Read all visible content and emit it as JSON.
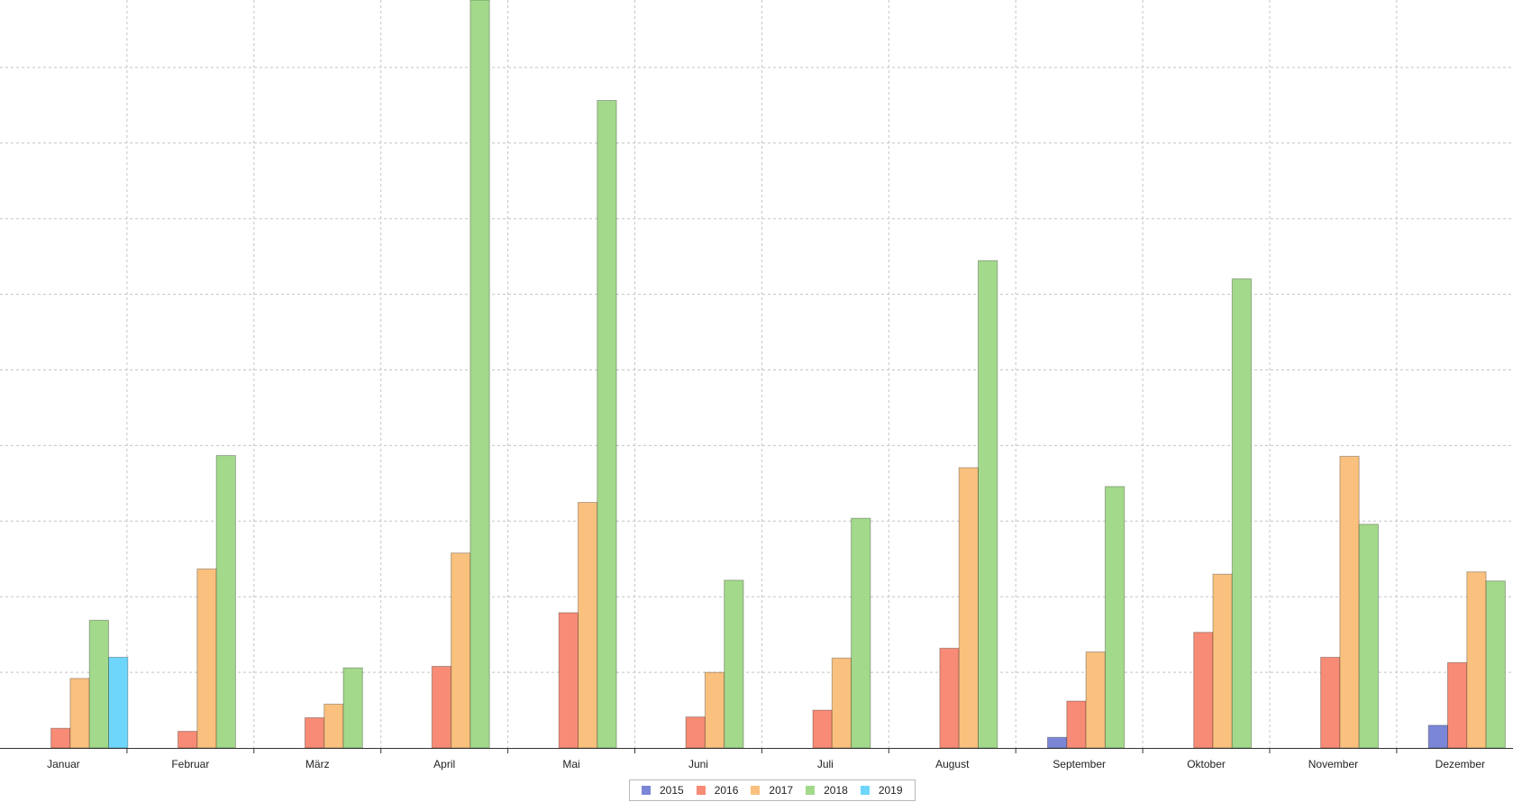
{
  "chart_data": {
    "type": "bar",
    "categories": [
      "Januar",
      "Februar",
      "März",
      "April",
      "Mai",
      "Juni",
      "Juli",
      "August",
      "September",
      "Oktober",
      "November",
      "Dezember"
    ],
    "series": [
      {
        "name": "2015",
        "color": "#7b86d6",
        "values": [
          null,
          null,
          null,
          null,
          null,
          null,
          null,
          null,
          0.14,
          null,
          null,
          0.3
        ]
      },
      {
        "name": "2016",
        "color": "#f78b75",
        "values": [
          0.26,
          0.22,
          0.4,
          1.08,
          1.79,
          0.41,
          0.5,
          1.32,
          0.62,
          1.53,
          1.2,
          1.13
        ]
      },
      {
        "name": "2017",
        "color": "#f9c07e",
        "values": [
          0.92,
          2.37,
          0.58,
          2.58,
          3.25,
          1.0,
          1.19,
          3.71,
          1.27,
          2.3,
          3.86,
          2.33
        ]
      },
      {
        "name": "2018",
        "color": "#a3d98b",
        "values": [
          1.69,
          3.87,
          1.06,
          9.9,
          8.57,
          2.22,
          3.04,
          6.45,
          3.46,
          6.21,
          2.96,
          2.21
        ]
      },
      {
        "name": "2019",
        "color": "#6fd6fb",
        "values": [
          1.2,
          null,
          null,
          null,
          null,
          null,
          null,
          null,
          null,
          null,
          null,
          null
        ]
      }
    ],
    "ylim": [
      0,
      9.9
    ],
    "grid": true,
    "legend": "bottom-center"
  }
}
